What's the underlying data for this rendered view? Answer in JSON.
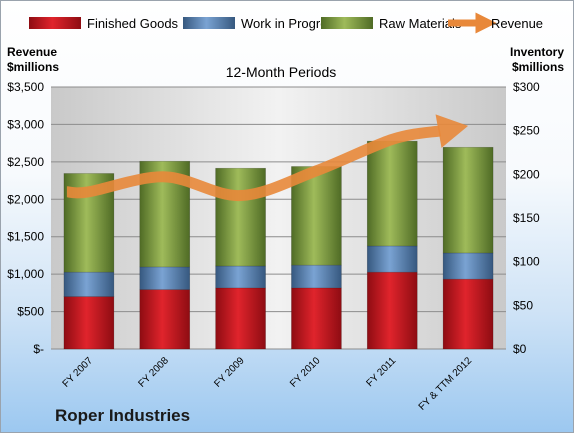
{
  "chart_data": {
    "type": "bar",
    "subtitle": "12-Month Periods",
    "company": "Roper Industries",
    "categories": [
      "FY 2007",
      "FY 2008",
      "FY 2009",
      "FY 2010",
      "FY 2011",
      "FY & TTM 2012"
    ],
    "stack_series": [
      {
        "name": "Finished Goods",
        "color": "#c8121c",
        "values": [
          60,
          68,
          70,
          70,
          88,
          80
        ]
      },
      {
        "name": "Work in Progress",
        "color": "#4f81bd",
        "values": [
          28,
          26,
          25,
          26,
          30,
          30
        ]
      },
      {
        "name": "Raw Materials",
        "color": "#77933c",
        "values": [
          113,
          121,
          112,
          113,
          120,
          121
        ]
      }
    ],
    "line_series": {
      "name": "Revenue",
      "color": "#e8883a",
      "values": [
        2100,
        2300,
        2050,
        2380,
        2800,
        2980
      ]
    },
    "left_axis": {
      "title_line1": "Revenue",
      "title_line2": "$millions",
      "min": 0,
      "max": 3500,
      "tick_labels": [
        "$-",
        "$500",
        "$1,000",
        "$1,500",
        "$2,000",
        "$2,500",
        "$3,000",
        "$3,500"
      ]
    },
    "right_axis": {
      "title_line1": "Inventory",
      "title_line2": "$millions",
      "min": 0,
      "max": 300,
      "tick_labels": [
        "$0",
        "$50",
        "$100",
        "$150",
        "$200",
        "$250",
        "$300"
      ]
    },
    "grid": true,
    "legend_position": "top"
  }
}
